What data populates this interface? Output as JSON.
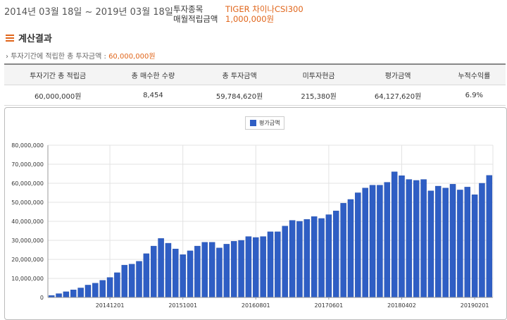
{
  "header": {
    "period": "2014년 03월 18일 ~ 2019년 03월 18일",
    "fund_label": "투자종목",
    "fund_value": "TIGER 차이나CSI300",
    "monthly_label": "매월적립금액",
    "monthly_value": "1,000,000원"
  },
  "section": {
    "title": "계산결과",
    "summary_prefix": "투자기간에 적립한 총 투자금액 : ",
    "summary_value": "60,000,000원"
  },
  "table": {
    "headers": [
      "투자기간 총 적립금",
      "총 매수한 수량",
      "총 투자금액",
      "미투자현금",
      "평가금액",
      "누적수익률"
    ],
    "row": [
      "60,000,000원",
      "8,454",
      "59,784,620원",
      "215,380원",
      "64,127,620원",
      "6.9%"
    ]
  },
  "colors": {
    "accent": "#e0651a",
    "bar": "#2f5ec4"
  },
  "chart_data": {
    "type": "bar",
    "legend": [
      "평가금액"
    ],
    "legend_position": "top-center",
    "grid": true,
    "ylim": [
      0,
      80000000
    ],
    "yticks": [
      "0",
      "10,000,000",
      "20,000,000",
      "30,000,000",
      "40,000,000",
      "50,000,000",
      "60,000,000",
      "70,000,000",
      "80,000,000"
    ],
    "xtick_labels": [
      {
        "index": 8,
        "label": "20141201"
      },
      {
        "index": 18,
        "label": "20151001"
      },
      {
        "index": 28,
        "label": "20160801"
      },
      {
        "index": 38,
        "label": "20170601"
      },
      {
        "index": 48,
        "label": "20180402"
      },
      {
        "index": 58,
        "label": "20190201"
      }
    ],
    "series": [
      {
        "name": "평가금액",
        "values": [
          1000000,
          2000000,
          3000000,
          4000000,
          5000000,
          6500000,
          7500000,
          9000000,
          10500000,
          13000000,
          17000000,
          17500000,
          19000000,
          23000000,
          27000000,
          31000000,
          28500000,
          25500000,
          22500000,
          24500000,
          27000000,
          29000000,
          29000000,
          26000000,
          28000000,
          29500000,
          30000000,
          32000000,
          31500000,
          32000000,
          34500000,
          34500000,
          37500000,
          40500000,
          40000000,
          41000000,
          42500000,
          41500000,
          43500000,
          45500000,
          49500000,
          51500000,
          55000000,
          57500000,
          59000000,
          59000000,
          60500000,
          66000000,
          64000000,
          62000000,
          61500000,
          62000000,
          56000000,
          58500000,
          57500000,
          59500000,
          56500000,
          58000000,
          54000000,
          60000000,
          64127620
        ]
      }
    ]
  }
}
